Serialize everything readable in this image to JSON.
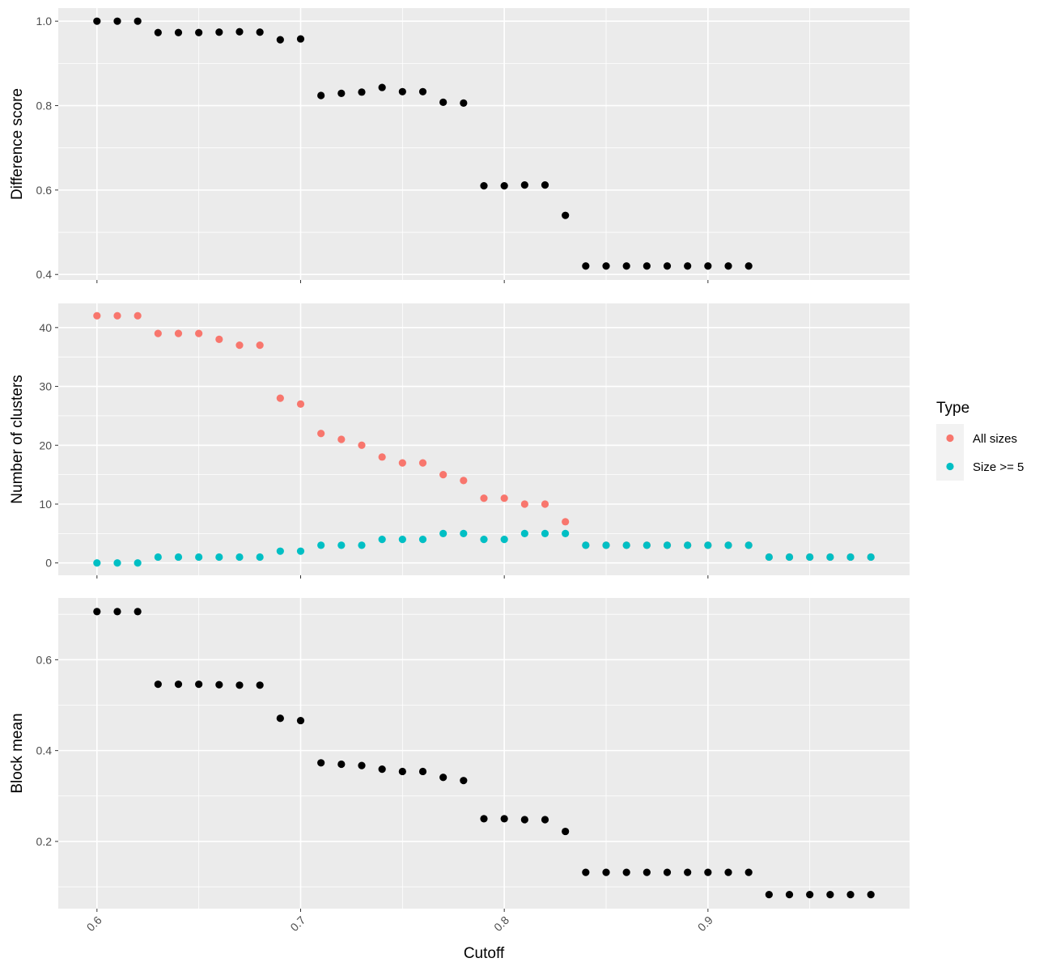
{
  "chart_data": [
    {
      "type": "scatter",
      "panel": "top",
      "ylabel": "Difference score",
      "y_ticks": [
        "0.4",
        "0.6",
        "0.8",
        "1.0"
      ],
      "x_ticks": [
        "0.6",
        "0.7",
        "0.8",
        "0.9"
      ],
      "xlim": [
        0.581,
        0.999
      ],
      "ylim": [
        0.387,
        1.031
      ],
      "grid": true,
      "series": [
        {
          "color": "#000000",
          "points": [
            [
              0.6,
              1.0
            ],
            [
              0.61,
              1.0
            ],
            [
              0.62,
              1.0
            ],
            [
              0.63,
              0.973
            ],
            [
              0.64,
              0.973
            ],
            [
              0.65,
              0.973
            ],
            [
              0.66,
              0.974
            ],
            [
              0.67,
              0.975
            ],
            [
              0.68,
              0.974
            ],
            [
              0.69,
              0.956
            ],
            [
              0.7,
              0.958
            ],
            [
              0.71,
              0.824
            ],
            [
              0.72,
              0.829
            ],
            [
              0.73,
              0.832
            ],
            [
              0.74,
              0.843
            ],
            [
              0.75,
              0.833
            ],
            [
              0.76,
              0.833
            ],
            [
              0.77,
              0.808
            ],
            [
              0.78,
              0.806
            ],
            [
              0.79,
              0.61
            ],
            [
              0.8,
              0.61
            ],
            [
              0.81,
              0.612
            ],
            [
              0.82,
              0.612
            ],
            [
              0.83,
              0.54
            ],
            [
              0.84,
              0.42
            ],
            [
              0.85,
              0.42
            ],
            [
              0.86,
              0.42
            ],
            [
              0.87,
              0.42
            ],
            [
              0.88,
              0.42
            ],
            [
              0.89,
              0.42
            ],
            [
              0.9,
              0.42
            ],
            [
              0.91,
              0.42
            ],
            [
              0.92,
              0.42
            ]
          ]
        }
      ]
    },
    {
      "type": "scatter",
      "panel": "middle",
      "ylabel": "Number of clusters",
      "y_ticks": [
        "0",
        "10",
        "20",
        "30",
        "40"
      ],
      "x_ticks": [
        "0.6",
        "0.7",
        "0.8",
        "0.9"
      ],
      "xlim": [
        0.581,
        0.999
      ],
      "ylim": [
        -2.1,
        44.1
      ],
      "grid": true,
      "legend": {
        "title": "Type",
        "position": "right",
        "entries": [
          "All sizes",
          "Size >= 5"
        ]
      },
      "series": [
        {
          "name": "All sizes",
          "color": "#F8766D",
          "points": [
            [
              0.6,
              42
            ],
            [
              0.61,
              42
            ],
            [
              0.62,
              42
            ],
            [
              0.63,
              39
            ],
            [
              0.64,
              39
            ],
            [
              0.65,
              39
            ],
            [
              0.66,
              38
            ],
            [
              0.67,
              37
            ],
            [
              0.68,
              37
            ],
            [
              0.69,
              28
            ],
            [
              0.7,
              27
            ],
            [
              0.71,
              22
            ],
            [
              0.72,
              21
            ],
            [
              0.73,
              20
            ],
            [
              0.74,
              18
            ],
            [
              0.75,
              17
            ],
            [
              0.76,
              17
            ],
            [
              0.77,
              15
            ],
            [
              0.78,
              14
            ],
            [
              0.79,
              11
            ],
            [
              0.8,
              11
            ],
            [
              0.81,
              10
            ],
            [
              0.82,
              10
            ],
            [
              0.83,
              7
            ],
            [
              0.84,
              3
            ],
            [
              0.85,
              3
            ],
            [
              0.86,
              3
            ],
            [
              0.87,
              3
            ],
            [
              0.88,
              3
            ],
            [
              0.89,
              3
            ],
            [
              0.9,
              3
            ],
            [
              0.91,
              3
            ],
            [
              0.92,
              3
            ],
            [
              0.93,
              1
            ],
            [
              0.94,
              1
            ],
            [
              0.95,
              1
            ],
            [
              0.96,
              1
            ],
            [
              0.97,
              1
            ],
            [
              0.98,
              1
            ]
          ]
        },
        {
          "name": "Size >= 5",
          "color": "#00BFC4",
          "points": [
            [
              0.6,
              0
            ],
            [
              0.61,
              0
            ],
            [
              0.62,
              0
            ],
            [
              0.63,
              1
            ],
            [
              0.64,
              1
            ],
            [
              0.65,
              1
            ],
            [
              0.66,
              1
            ],
            [
              0.67,
              1
            ],
            [
              0.68,
              1
            ],
            [
              0.69,
              2
            ],
            [
              0.7,
              2
            ],
            [
              0.71,
              3
            ],
            [
              0.72,
              3
            ],
            [
              0.73,
              3
            ],
            [
              0.74,
              4
            ],
            [
              0.75,
              4
            ],
            [
              0.76,
              4
            ],
            [
              0.77,
              5
            ],
            [
              0.78,
              5
            ],
            [
              0.79,
              4
            ],
            [
              0.8,
              4
            ],
            [
              0.81,
              5
            ],
            [
              0.82,
              5
            ],
            [
              0.83,
              5
            ],
            [
              0.84,
              3
            ],
            [
              0.85,
              3
            ],
            [
              0.86,
              3
            ],
            [
              0.87,
              3
            ],
            [
              0.88,
              3
            ],
            [
              0.89,
              3
            ],
            [
              0.9,
              3
            ],
            [
              0.91,
              3
            ],
            [
              0.92,
              3
            ],
            [
              0.93,
              1
            ],
            [
              0.94,
              1
            ],
            [
              0.95,
              1
            ],
            [
              0.96,
              1
            ],
            [
              0.97,
              1
            ],
            [
              0.98,
              1
            ]
          ]
        }
      ]
    },
    {
      "type": "scatter",
      "panel": "bottom",
      "ylabel": "Block mean",
      "xlabel": "Cutoff",
      "y_ticks": [
        "0.2",
        "0.4",
        "0.6"
      ],
      "x_ticks": [
        "0.6",
        "0.7",
        "0.8",
        "0.9"
      ],
      "xlim": [
        0.581,
        0.999
      ],
      "ylim": [
        0.052,
        0.736
      ],
      "grid": true,
      "series": [
        {
          "color": "#000000",
          "points": [
            [
              0.6,
              0.706
            ],
            [
              0.61,
              0.706
            ],
            [
              0.62,
              0.706
            ],
            [
              0.63,
              0.546
            ],
            [
              0.64,
              0.546
            ],
            [
              0.65,
              0.546
            ],
            [
              0.66,
              0.545
            ],
            [
              0.67,
              0.544
            ],
            [
              0.68,
              0.544
            ],
            [
              0.69,
              0.471
            ],
            [
              0.7,
              0.466
            ],
            [
              0.71,
              0.373
            ],
            [
              0.72,
              0.37
            ],
            [
              0.73,
              0.367
            ],
            [
              0.74,
              0.359
            ],
            [
              0.75,
              0.354
            ],
            [
              0.76,
              0.354
            ],
            [
              0.77,
              0.341
            ],
            [
              0.78,
              0.334
            ],
            [
              0.79,
              0.25
            ],
            [
              0.8,
              0.25
            ],
            [
              0.81,
              0.248
            ],
            [
              0.82,
              0.248
            ],
            [
              0.83,
              0.222
            ],
            [
              0.84,
              0.132
            ],
            [
              0.85,
              0.132
            ],
            [
              0.86,
              0.132
            ],
            [
              0.87,
              0.132
            ],
            [
              0.88,
              0.132
            ],
            [
              0.89,
              0.132
            ],
            [
              0.9,
              0.132
            ],
            [
              0.91,
              0.132
            ],
            [
              0.92,
              0.132
            ],
            [
              0.93,
              0.083
            ],
            [
              0.94,
              0.083
            ],
            [
              0.95,
              0.083
            ],
            [
              0.96,
              0.083
            ],
            [
              0.97,
              0.083
            ],
            [
              0.98,
              0.083
            ]
          ]
        }
      ]
    }
  ]
}
